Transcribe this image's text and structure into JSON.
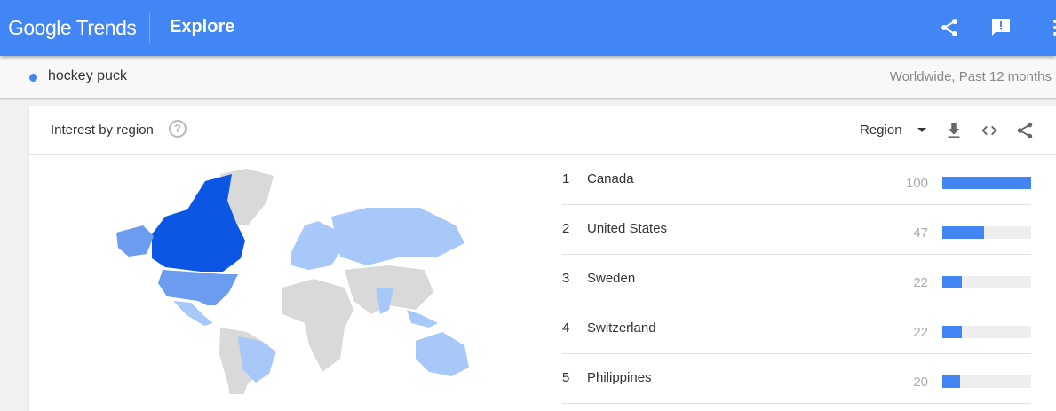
{
  "header": {
    "logo": "Google Trends",
    "title": "Explore",
    "icons": [
      "share-icon",
      "feedback-icon",
      "more-icon"
    ]
  },
  "subheader": {
    "term": "hockey puck",
    "term_color": "#4285f4",
    "scope": "Worldwide, Past 12 months"
  },
  "card": {
    "title": "Interest by region",
    "resolution": "Region",
    "icons": [
      "help-icon",
      "download-icon",
      "embed-icon",
      "share-icon"
    ],
    "regions": [
      {
        "rank": "1",
        "name": "Canada",
        "value": 100
      },
      {
        "rank": "2",
        "name": "United States",
        "value": 47
      },
      {
        "rank": "3",
        "name": "Sweden",
        "value": 22
      },
      {
        "rank": "4",
        "name": "Switzerland",
        "value": 22
      },
      {
        "rank": "5",
        "name": "Philippines",
        "value": 20
      }
    ]
  },
  "colors": {
    "brand": "#4285f4",
    "map_high": "#0b57e3",
    "map_mid": "#6b9cf0",
    "map_low": "#a9c8fa",
    "map_none": "#d9d9d9"
  }
}
